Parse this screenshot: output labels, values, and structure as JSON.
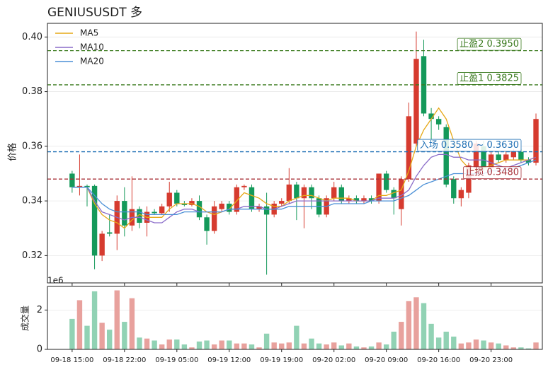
{
  "chart_data": [
    {
      "type": "candlestick",
      "title": "GENIUSUSDT  多",
      "ylabel": "价格",
      "categories": [
        "09-18 15:00",
        null,
        null,
        null,
        null,
        null,
        null,
        "09-18 22:00",
        null,
        null,
        null,
        null,
        null,
        null,
        "09-19 05:00",
        null,
        null,
        null,
        null,
        null,
        null,
        "09-19 12:00",
        null,
        null,
        null,
        null,
        null,
        null,
        "09-19 19:00",
        null,
        null,
        null,
        null,
        null,
        null,
        "09-20 02:00",
        null,
        null,
        null,
        null,
        null,
        null,
        "09-20 09:00",
        null,
        null,
        null,
        null,
        null,
        null,
        "09-20 16:00",
        null,
        null,
        null,
        null,
        null,
        null,
        "09-20 23:00",
        null,
        null,
        null,
        null,
        null,
        null
      ],
      "open": [
        0.35,
        0.345,
        0.3455,
        0.3455,
        0.32,
        0.3285,
        0.328,
        0.34,
        0.331,
        0.337,
        0.332,
        0.336,
        0.3355,
        0.338,
        0.343,
        0.339,
        0.3385,
        0.34,
        0.334,
        0.329,
        0.337,
        0.339,
        0.336,
        0.345,
        0.345,
        0.337,
        0.338,
        0.335,
        0.339,
        0.34,
        0.346,
        0.341,
        0.345,
        0.341,
        0.335,
        0.341,
        0.345,
        0.34,
        0.341,
        0.34,
        0.341,
        0.34,
        0.35,
        0.344,
        0.337,
        0.348,
        0.361,
        0.393,
        0.372,
        0.37,
        0.367,
        0.348,
        0.341,
        0.343,
        0.352,
        0.36,
        0.352,
        0.357,
        0.355,
        0.356,
        0.358,
        0.355,
        0.354
      ],
      "high": [
        0.351,
        0.357,
        0.346,
        0.346,
        0.329,
        0.335,
        0.342,
        0.345,
        0.349,
        0.338,
        0.338,
        0.337,
        0.339,
        0.347,
        0.344,
        0.34,
        0.341,
        0.342,
        0.335,
        0.34,
        0.34,
        0.34,
        0.346,
        0.346,
        0.346,
        0.339,
        0.343,
        0.34,
        0.341,
        0.352,
        0.347,
        0.346,
        0.346,
        0.342,
        0.342,
        0.347,
        0.346,
        0.342,
        0.342,
        0.342,
        0.342,
        0.35,
        0.351,
        0.345,
        0.349,
        0.376,
        0.402,
        0.399,
        0.374,
        0.371,
        0.368,
        0.349,
        0.345,
        0.354,
        0.362,
        0.362,
        0.358,
        0.358,
        0.358,
        0.359,
        0.359,
        0.356,
        0.372
      ],
      "low": [
        0.343,
        0.342,
        0.338,
        0.315,
        0.318,
        0.327,
        0.322,
        0.327,
        0.329,
        0.33,
        0.327,
        0.335,
        0.335,
        0.336,
        0.338,
        0.338,
        0.338,
        0.333,
        0.324,
        0.328,
        0.336,
        0.335,
        0.335,
        0.344,
        0.336,
        0.336,
        0.313,
        0.334,
        0.338,
        0.339,
        0.333,
        0.33,
        0.337,
        0.334,
        0.334,
        0.34,
        0.339,
        0.339,
        0.339,
        0.339,
        0.339,
        0.339,
        0.343,
        0.335,
        0.331,
        0.347,
        0.36,
        0.371,
        0.362,
        0.366,
        0.345,
        0.339,
        0.338,
        0.341,
        0.351,
        0.351,
        0.351,
        0.354,
        0.354,
        0.355,
        0.354,
        0.353,
        0.353
      ],
      "close": [
        0.345,
        0.3455,
        0.345,
        0.32,
        0.328,
        0.328,
        0.34,
        0.331,
        0.337,
        0.332,
        0.336,
        0.3355,
        0.338,
        0.343,
        0.339,
        0.3385,
        0.34,
        0.334,
        0.329,
        0.338,
        0.339,
        0.336,
        0.345,
        0.3455,
        0.337,
        0.338,
        0.335,
        0.339,
        0.34,
        0.346,
        0.341,
        0.345,
        0.341,
        0.335,
        0.341,
        0.345,
        0.34,
        0.341,
        0.34,
        0.341,
        0.34,
        0.35,
        0.344,
        0.341,
        0.348,
        0.371,
        0.392,
        0.372,
        0.37,
        0.368,
        0.346,
        0.341,
        0.344,
        0.353,
        0.361,
        0.352,
        0.357,
        0.355,
        0.357,
        0.358,
        0.355,
        0.354,
        0.37
      ],
      "up_color": "#d63b2f",
      "down_color": "#14995a",
      "series": [
        {
          "name": "MA5",
          "color": "#e6a817",
          "values": [
            0.345,
            0.345,
            0.345,
            0.339,
            0.335,
            0.333,
            0.332,
            0.33,
            0.333,
            0.335,
            0.334,
            0.334,
            0.334,
            0.337,
            0.339,
            0.339,
            0.339,
            0.338,
            0.336,
            0.335,
            0.336,
            0.337,
            0.34,
            0.343,
            0.342,
            0.341,
            0.339,
            0.338,
            0.338,
            0.34,
            0.341,
            0.342,
            0.342,
            0.341,
            0.34,
            0.341,
            0.341,
            0.341,
            0.34,
            0.34,
            0.34,
            0.342,
            0.342,
            0.343,
            0.344,
            0.351,
            0.36,
            0.366,
            0.37,
            0.374,
            0.37,
            0.362,
            0.355,
            0.352,
            0.351,
            0.352,
            0.353,
            0.354,
            0.355,
            0.355,
            0.355,
            0.355,
            0.356
          ]
        },
        {
          "name": "MA10",
          "color": "#8a6cc9",
          "values": [
            0.345,
            0.345,
            0.345,
            0.34,
            0.336,
            0.335,
            0.334,
            0.333,
            0.334,
            0.334,
            0.333,
            0.332,
            0.332,
            0.334,
            0.336,
            0.337,
            0.337,
            0.336,
            0.336,
            0.336,
            0.336,
            0.337,
            0.337,
            0.338,
            0.338,
            0.338,
            0.337,
            0.337,
            0.338,
            0.339,
            0.34,
            0.34,
            0.34,
            0.34,
            0.34,
            0.34,
            0.34,
            0.34,
            0.34,
            0.34,
            0.34,
            0.341,
            0.341,
            0.341,
            0.342,
            0.344,
            0.349,
            0.353,
            0.356,
            0.357,
            0.357,
            0.356,
            0.356,
            0.355,
            0.355,
            0.355,
            0.354,
            0.353,
            0.352,
            0.353,
            0.354,
            0.355,
            0.356
          ]
        },
        {
          "name": "MA20",
          "color": "#4a8fd6",
          "values": [
            0.345,
            0.345,
            0.345,
            0.342,
            0.339,
            0.337,
            0.336,
            0.336,
            0.336,
            0.336,
            0.335,
            0.335,
            0.335,
            0.335,
            0.335,
            0.336,
            0.336,
            0.336,
            0.336,
            0.336,
            0.336,
            0.337,
            0.337,
            0.337,
            0.337,
            0.337,
            0.337,
            0.337,
            0.337,
            0.338,
            0.338,
            0.338,
            0.338,
            0.338,
            0.338,
            0.339,
            0.339,
            0.339,
            0.339,
            0.339,
            0.34,
            0.34,
            0.34,
            0.34,
            0.341,
            0.342,
            0.344,
            0.346,
            0.347,
            0.348,
            0.349,
            0.35,
            0.35,
            0.35,
            0.35,
            0.35,
            0.351,
            0.351,
            0.351,
            0.352,
            0.353,
            0.354,
            0.355
          ]
        }
      ],
      "levels": [
        {
          "label": "止盈2 0.3950",
          "value": 0.395,
          "color": "#3a7a1e"
        },
        {
          "label": "止盈1 0.3825",
          "value": 0.3825,
          "color": "#3a7a1e"
        },
        {
          "label": "入场 0.3580 ~ 0.3630",
          "value": 0.358,
          "color": "#1f6fb4"
        },
        {
          "label": "止损 0.3480",
          "value": 0.348,
          "color": "#a8323a"
        }
      ],
      "ylim": [
        0.31,
        0.405
      ],
      "yticks": [
        0.32,
        0.34,
        0.36,
        0.38,
        {
          "value": 0.4,
          "label": "0.40"
        }
      ],
      "legend": "upper left",
      "grid": true
    },
    {
      "type": "bar",
      "ylabel": "成交量",
      "offset_label": "1e6",
      "values": [
        1.55,
        2.5,
        1.2,
        2.95,
        1.35,
        1.0,
        3.0,
        1.4,
        2.6,
        0.6,
        0.55,
        0.45,
        0.25,
        0.5,
        0.5,
        0.25,
        0.1,
        0.4,
        0.45,
        0.25,
        0.45,
        0.45,
        0.3,
        0.3,
        0.25,
        0.1,
        0.8,
        0.35,
        0.3,
        0.35,
        1.2,
        0.3,
        0.55,
        0.3,
        0.25,
        0.35,
        0.2,
        0.3,
        0.15,
        0.1,
        0.15,
        0.35,
        0.25,
        0.9,
        1.4,
        2.45,
        2.65,
        2.35,
        1.3,
        0.6,
        0.9,
        0.65,
        0.3,
        0.35,
        0.5,
        0.45,
        0.35,
        0.3,
        0.2,
        0.1,
        0.1,
        0.05,
        0.35
      ],
      "up_color": "#e8a19d",
      "down_color": "#91d2b4",
      "ylim": [
        0,
        3.2
      ],
      "yticks": [
        0,
        2
      ],
      "grid": true
    }
  ]
}
